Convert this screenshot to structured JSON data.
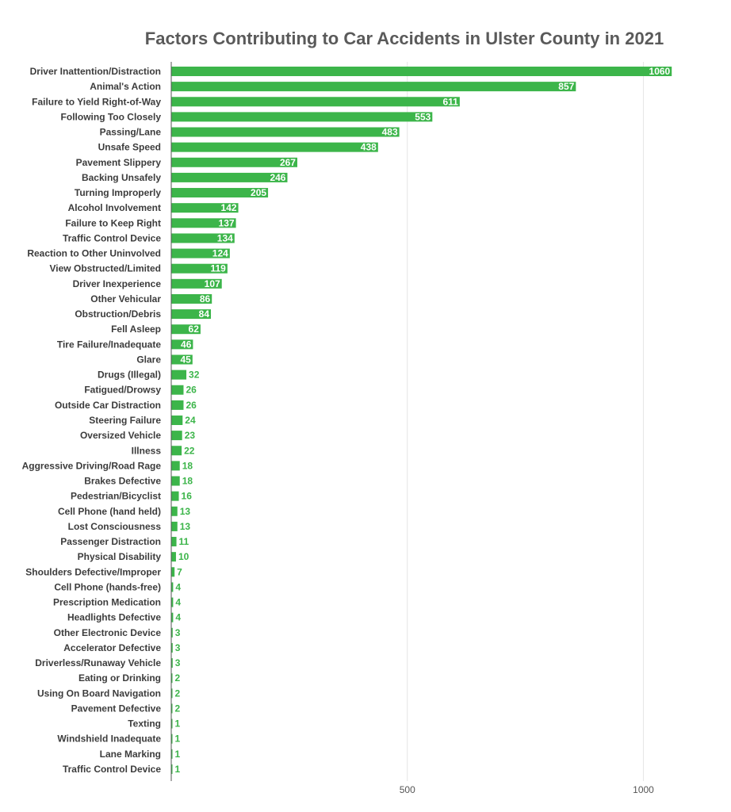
{
  "chart_data": {
    "type": "bar",
    "orientation": "horizontal",
    "title": "Factors Contributing to Car Accidents in Ulster County in 2021",
    "xlabel": "",
    "ylabel": "",
    "xlim": [
      0,
      1100
    ],
    "xticks": [
      500,
      1000
    ],
    "grid": true,
    "bar_color": "#3cb54a",
    "inside_label_color": "#ffffff",
    "outside_label_color": "#3cb54a",
    "categories": [
      "Driver Inattention/Distraction",
      "Animal's Action",
      "Failure to Yield Right-of-Way",
      "Following Too Closely",
      "Passing/Lane",
      "Unsafe Speed",
      "Pavement Slippery",
      "Backing Unsafely",
      "Turning Improperly",
      "Alcohol Involvement",
      "Failure to Keep Right",
      "Traffic Control Device",
      "Reaction to Other Uninvolved",
      "View Obstructed/Limited",
      "Driver Inexperience",
      "Other Vehicular",
      "Obstruction/Debris",
      "Fell Asleep",
      "Tire Failure/Inadequate",
      "Glare",
      "Drugs (Illegal)",
      "Fatigued/Drowsy",
      "Outside Car Distraction",
      "Steering Failure",
      "Oversized Vehicle",
      "Illness",
      "Aggressive Driving/Road Rage",
      "Brakes Defective",
      "Pedestrian/Bicyclist",
      "Cell Phone (hand held)",
      "Lost Consciousness",
      "Passenger Distraction",
      "Physical Disability",
      "Shoulders Defective/Improper",
      "Cell Phone (hands-free)",
      "Prescription Medication",
      "Headlights Defective",
      "Other Electronic Device",
      "Accelerator Defective",
      "Driverless/Runaway Vehicle",
      "Eating or Drinking",
      "Using On Board Navigation",
      "Pavement Defective",
      "Texting",
      "Windshield Inadequate",
      "Lane Marking",
      "Traffic Control Device"
    ],
    "values": [
      1060,
      857,
      611,
      553,
      483,
      438,
      267,
      246,
      205,
      142,
      137,
      134,
      124,
      119,
      107,
      86,
      84,
      62,
      46,
      45,
      32,
      26,
      26,
      24,
      23,
      22,
      18,
      18,
      16,
      13,
      13,
      11,
      10,
      7,
      4,
      4,
      4,
      3,
      3,
      3,
      2,
      2,
      2,
      1,
      1,
      1,
      1
    ]
  }
}
